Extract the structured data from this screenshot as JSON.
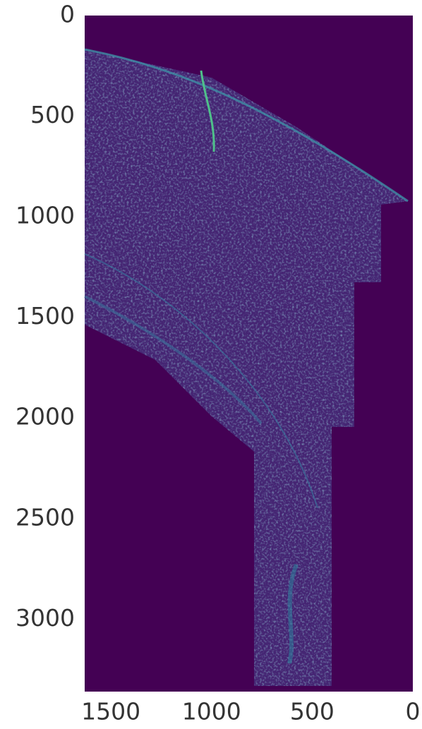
{
  "chart_data": {
    "type": "image",
    "xlim": [
      1630,
      0
    ],
    "xticks": [
      1500,
      1000,
      500,
      0
    ],
    "ylim": [
      0,
      3360
    ],
    "yticks": [
      0,
      500,
      1000,
      1500,
      2000,
      2500,
      3000
    ],
    "color": "#440154"
  }
}
